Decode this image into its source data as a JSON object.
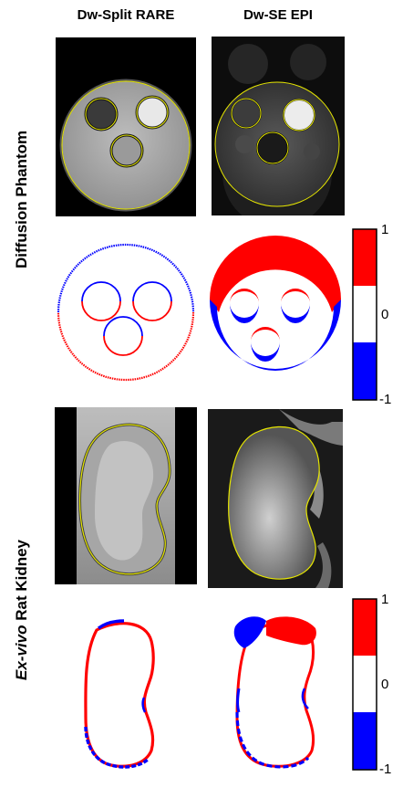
{
  "columns": {
    "left": "Dw-Split RARE",
    "right": "Dw-SE EPI"
  },
  "rows": {
    "top": "Diffusion Phantom",
    "bottom_italic": "Ex-vivo",
    "bottom_rest": " Rat Kidney"
  },
  "colorbar": {
    "top": "1",
    "mid": "0",
    "bottom": "-1",
    "colors": {
      "positive": "#ff0000",
      "zero": "#ffffff",
      "negative": "#0000ff"
    }
  },
  "colors": {
    "overlay_contour": "#e6e600"
  }
}
